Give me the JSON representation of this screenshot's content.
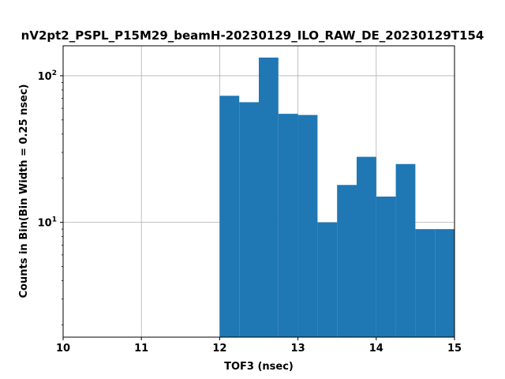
{
  "chart_data": {
    "type": "bar",
    "title": "nV2pt2_PSPL_P15M29_beamH-20230129_ILO_RAW_DE_20230129T154",
    "xlabel": "TOF3 (nsec)",
    "ylabel": "Counts in Bin(Bin Width = 0.25 nsec)",
    "xlim": [
      10,
      15
    ],
    "ylim": [
      1.65,
      160
    ],
    "yscale": "log",
    "grid": true,
    "bar_color": "#1f77b4",
    "bin_width": 0.25,
    "x_ticks": [
      "10",
      "11",
      "12",
      "13",
      "14",
      "15"
    ],
    "y_ticks": [
      {
        "base": "10",
        "exp": "1",
        "value": 10
      },
      {
        "base": "10",
        "exp": "2",
        "value": 100
      }
    ],
    "bins": [
      {
        "start": 12.0,
        "value": 73
      },
      {
        "start": 12.25,
        "value": 66
      },
      {
        "start": 12.5,
        "value": 133
      },
      {
        "start": 12.75,
        "value": 55
      },
      {
        "start": 13.0,
        "value": 54
      },
      {
        "start": 13.25,
        "value": 10
      },
      {
        "start": 13.5,
        "value": 18
      },
      {
        "start": 13.75,
        "value": 28
      },
      {
        "start": 14.0,
        "value": 15
      },
      {
        "start": 14.25,
        "value": 25
      },
      {
        "start": 14.5,
        "value": 9
      },
      {
        "start": 14.75,
        "value": 9
      }
    ]
  }
}
